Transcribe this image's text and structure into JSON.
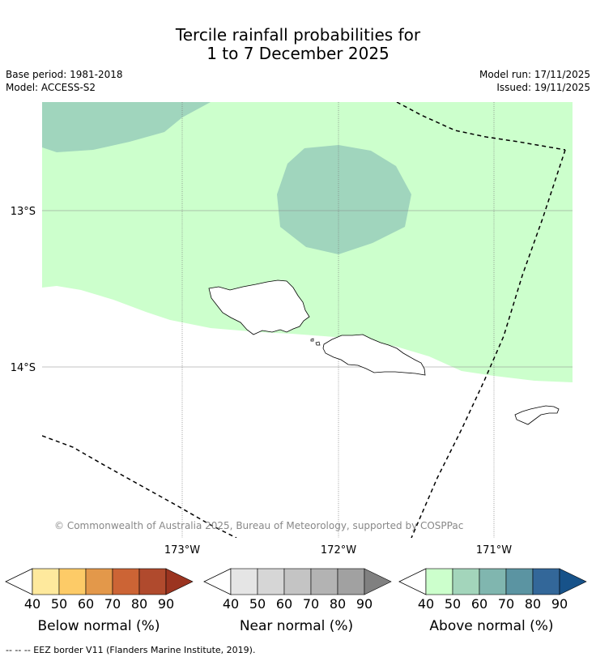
{
  "header": {
    "title_line1": "Tercile rainfall probabilities for",
    "title_line2": "1 to 7 December 2025",
    "base_period": "Base period: 1981-2018",
    "model": "Model: ACCESS-S2",
    "model_run": "Model run: 17/11/2025",
    "issued": "Issued: 19/11/2025"
  },
  "map": {
    "lat_labels": [
      "13°S",
      "14°S"
    ],
    "lon_labels": [
      "173°W",
      "172°W",
      "171°W"
    ],
    "copyright": "© Commonwealth of Australia 2025, Bureau of Meteorology, supported by COSPPac",
    "colors": {
      "above_40": "#ccffcc",
      "above_50": "#a0d5bd",
      "ocean": "#ffffff",
      "coast": "#000000",
      "eez": "#000000"
    }
  },
  "legend": {
    "tick_labels": [
      "40",
      "50",
      "60",
      "70",
      "80",
      "90"
    ],
    "below": {
      "label": "Below normal (%)",
      "colors": [
        "#fee99d",
        "#fdcb67",
        "#e3984a",
        "#cc6435",
        "#b04a2d",
        "#9b3420"
      ]
    },
    "near": {
      "label": "Near normal (%)",
      "colors": [
        "#e5e5e5",
        "#d6d6d6",
        "#c4c4c4",
        "#b3b3b3",
        "#a1a1a1",
        "#808080"
      ]
    },
    "above": {
      "label": "Above normal (%)",
      "colors": [
        "#ccffcc",
        "#a3d5bb",
        "#80b6af",
        "#5b94a2",
        "#336799",
        "#175289"
      ]
    }
  },
  "footnote": "--  --  -- EEZ border V11 (Flanders Marine Institute, 2019)."
}
